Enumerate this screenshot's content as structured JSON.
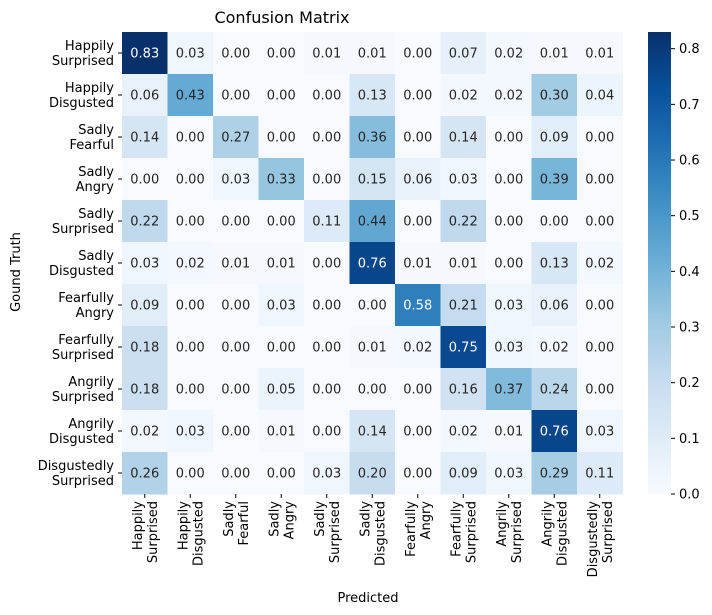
{
  "chart_data": {
    "type": "heatmap",
    "title": "Confusion Matrix",
    "xlabel": "Predicted",
    "ylabel": "Gound Truth",
    "row_labels": [
      [
        "Happily",
        "Surprised"
      ],
      [
        "Happily",
        "Disgusted"
      ],
      [
        "Sadly",
        "Fearful"
      ],
      [
        "Sadly",
        "Angry"
      ],
      [
        "Sadly",
        "Surprised"
      ],
      [
        "Sadly",
        "Disgusted"
      ],
      [
        "Fearfully",
        "Angry"
      ],
      [
        "Fearfully",
        "Surprised"
      ],
      [
        "Angrily",
        "Surprised"
      ],
      [
        "Angrily",
        "Disgusted"
      ],
      [
        "Disgustedly",
        "Surprised"
      ]
    ],
    "col_labels": [
      [
        "Happily",
        "Surprised"
      ],
      [
        "Happily",
        "Disgusted"
      ],
      [
        "Sadly",
        "Fearful"
      ],
      [
        "Sadly",
        "Angry"
      ],
      [
        "Sadly",
        "Surprised"
      ],
      [
        "Sadly",
        "Disgusted"
      ],
      [
        "Fearfully",
        "Angry"
      ],
      [
        "Fearfully",
        "Surprised"
      ],
      [
        "Angrily",
        "Surprised"
      ],
      [
        "Angrily",
        "Disgusted"
      ],
      [
        "Disgustedly",
        "Surprised"
      ]
    ],
    "values": [
      [
        "0.83",
        "0.03",
        "0.00",
        "0.00",
        "0.01",
        "0.01",
        "0.00",
        "0.07",
        "0.02",
        "0.01",
        "0.01"
      ],
      [
        "0.06",
        "0.43",
        "0.00",
        "0.00",
        "0.00",
        "0.13",
        "0.00",
        "0.02",
        "0.02",
        "0.30",
        "0.04"
      ],
      [
        "0.14",
        "0.00",
        "0.27",
        "0.00",
        "0.00",
        "0.36",
        "0.00",
        "0.14",
        "0.00",
        "0.09",
        "0.00"
      ],
      [
        "0.00",
        "0.00",
        "0.03",
        "0.33",
        "0.00",
        "0.15",
        "0.06",
        "0.03",
        "0.00",
        "0.39",
        "0.00"
      ],
      [
        "0.22",
        "0.00",
        "0.00",
        "0.00",
        "0.11",
        "0.44",
        "0.00",
        "0.22",
        "0.00",
        "0.00",
        "0.00"
      ],
      [
        "0.03",
        "0.02",
        "0.01",
        "0.01",
        "0.00",
        "0.76",
        "0.01",
        "0.01",
        "0.00",
        "0.13",
        "0.02"
      ],
      [
        "0.09",
        "0.00",
        "0.00",
        "0.03",
        "0.00",
        "0.00",
        "0.58",
        "0.21",
        "0.03",
        "0.06",
        "0.00"
      ],
      [
        "0.18",
        "0.00",
        "0.00",
        "0.00",
        "0.00",
        "0.01",
        "0.02",
        "0.75",
        "0.03",
        "0.02",
        "0.00"
      ],
      [
        "0.18",
        "0.00",
        "0.00",
        "0.05",
        "0.00",
        "0.00",
        "0.00",
        "0.16",
        "0.37",
        "0.24",
        "0.00"
      ],
      [
        "0.02",
        "0.03",
        "0.00",
        "0.01",
        "0.00",
        "0.14",
        "0.00",
        "0.02",
        "0.01",
        "0.76",
        "0.03"
      ],
      [
        "0.26",
        "0.00",
        "0.00",
        "0.00",
        "0.03",
        "0.20",
        "0.00",
        "0.09",
        "0.03",
        "0.29",
        "0.11"
      ]
    ],
    "colorbar": {
      "min": 0.0,
      "max": 0.83,
      "ticks": [
        "0.0",
        "0.1",
        "0.2",
        "0.3",
        "0.4",
        "0.5",
        "0.6",
        "0.7",
        "0.8"
      ],
      "colormap": "Blues"
    },
    "text_dark": "#262626",
    "text_light": "#ffffff"
  }
}
